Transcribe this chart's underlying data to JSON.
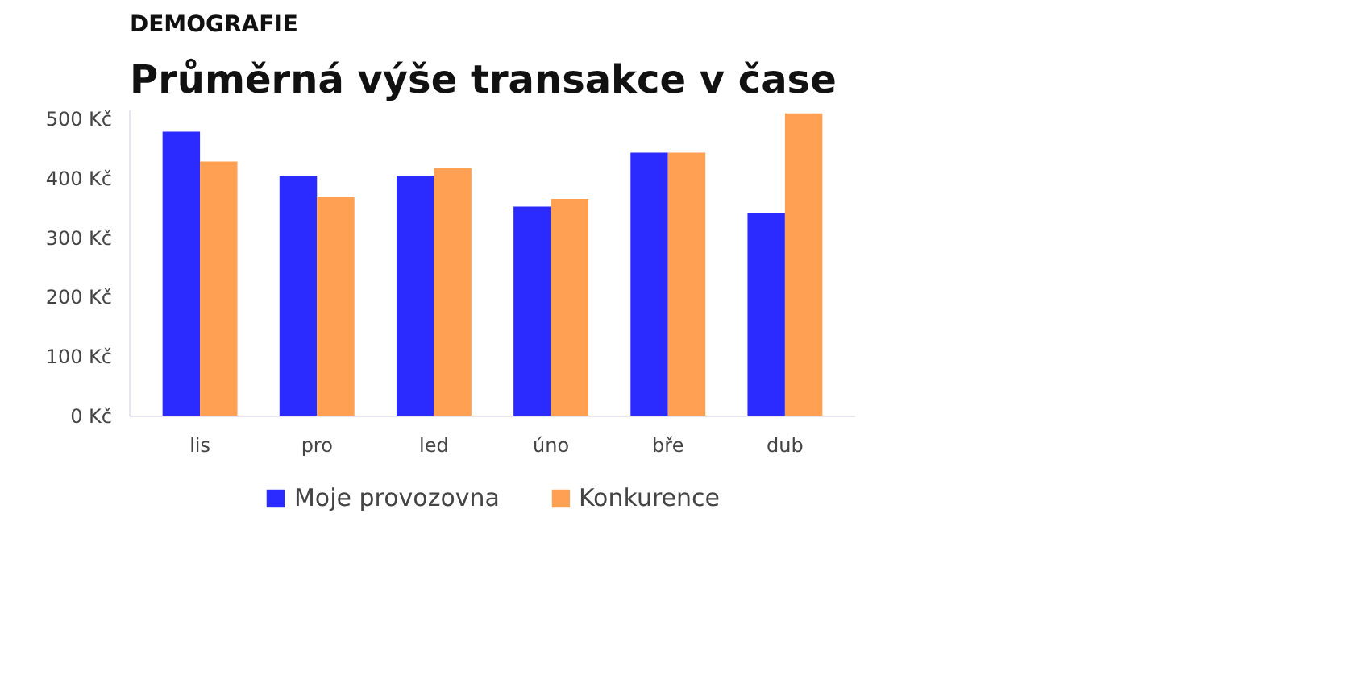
{
  "chart_data": {
    "type": "bar",
    "subtitle": "DEMOGRAFIE",
    "title": "Průměrná výše transakce v čase",
    "categories": [
      "lis",
      "pro",
      "led",
      "úno",
      "bře",
      "dub"
    ],
    "series": [
      {
        "name": "Moje provozovna",
        "color": "#2b2bff",
        "values": [
          479,
          405,
          405,
          353,
          444,
          343
        ]
      },
      {
        "name": "Konkurence",
        "color": "#ffa052",
        "values": [
          429,
          370,
          418,
          366,
          444,
          510
        ]
      }
    ],
    "ylim": [
      0,
      515
    ],
    "yticks": [
      {
        "value": 0,
        "label": "0 Kč"
      },
      {
        "value": 100,
        "label": "100 Kč"
      },
      {
        "value": 200,
        "label": "200 Kč"
      },
      {
        "value": 300,
        "label": "300 Kč"
      },
      {
        "value": 400,
        "label": "400 Kč"
      },
      {
        "value": 500,
        "label": "500 Kč"
      }
    ],
    "grid": false,
    "legend": "bottom"
  }
}
